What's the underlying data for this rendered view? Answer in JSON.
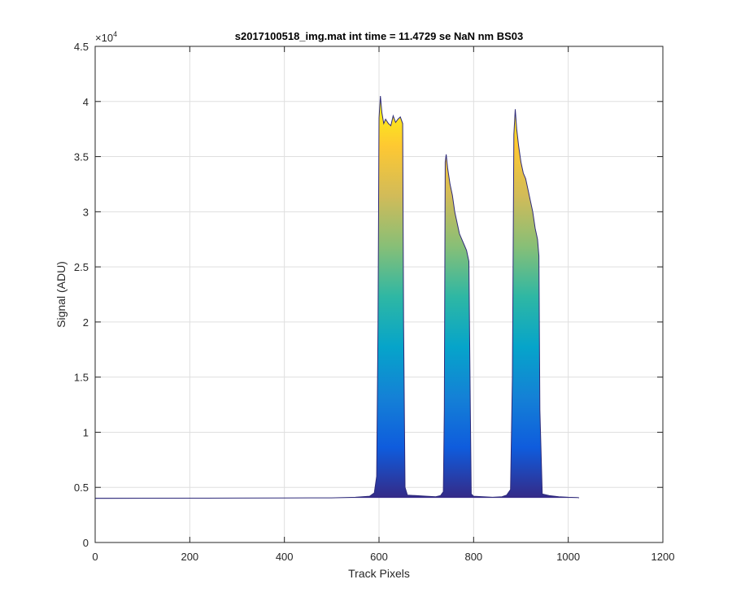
{
  "chart_data": {
    "type": "area",
    "title": "s2017100518_img.mat int time = 11.4729 se  NaN nm BS03",
    "xlabel": "Track Pixels",
    "ylabel": "Signal (ADU)",
    "xlim": [
      0,
      1200
    ],
    "ylim": [
      0,
      45000
    ],
    "y_multiplier_label": "×10",
    "y_multiplier_exponent": "4",
    "x_ticks": [
      0,
      200,
      400,
      600,
      800,
      1000,
      1200
    ],
    "x_tick_labels": [
      "0",
      "200",
      "400",
      "600",
      "800",
      "1000",
      "1200"
    ],
    "y_ticks": [
      0,
      5000,
      10000,
      15000,
      20000,
      25000,
      30000,
      35000,
      40000,
      45000
    ],
    "y_tick_labels": [
      "0",
      "0.5",
      "1",
      "1.5",
      "2",
      "2.5",
      "3",
      "3.5",
      "4",
      "4.5"
    ],
    "grid": true,
    "colormap": "parula",
    "colormap_stops": [
      "#352a87",
      "#0f5cdd",
      "#1481d6",
      "#06a4ca",
      "#2eb7a4",
      "#87bf77",
      "#d1bb59",
      "#fec832",
      "#f9fb0e"
    ],
    "line_color": "#2f2b7a",
    "baseline": 4050,
    "series": [
      {
        "x": [
          0,
          100,
          200,
          300,
          400,
          500,
          550,
          580,
          590,
          595,
          598,
          600,
          603,
          606,
          610,
          614,
          620,
          625,
          630,
          635,
          640,
          645,
          650,
          652,
          655,
          660,
          680,
          700,
          720,
          730,
          736,
          738,
          740,
          742,
          745,
          750,
          755,
          760,
          765,
          770,
          775,
          780,
          785,
          790,
          793,
          795,
          800,
          820,
          840,
          860,
          870,
          878,
          882,
          885,
          888,
          891,
          895,
          900,
          905,
          910,
          915,
          920,
          925,
          930,
          935,
          938,
          940,
          945,
          960,
          980,
          1000,
          1020,
          1023
        ],
        "y": [
          4000,
          4010,
          4020,
          4030,
          4040,
          4050,
          4100,
          4200,
          4500,
          6000,
          20000,
          38500,
          40500,
          39000,
          38000,
          38400,
          38000,
          37800,
          38700,
          38100,
          38400,
          38600,
          38000,
          20000,
          5000,
          4300,
          4250,
          4200,
          4150,
          4250,
          4600,
          12000,
          34500,
          35200,
          34000,
          32500,
          31500,
          30000,
          29000,
          28000,
          27500,
          27000,
          26500,
          25500,
          12000,
          4400,
          4200,
          4150,
          4100,
          4150,
          4300,
          4800,
          15000,
          37000,
          39300,
          37500,
          36000,
          34500,
          33500,
          33000,
          32000,
          31000,
          30000,
          28500,
          27500,
          26000,
          12000,
          4400,
          4250,
          4150,
          4100,
          4080,
          4050
        ]
      }
    ]
  }
}
